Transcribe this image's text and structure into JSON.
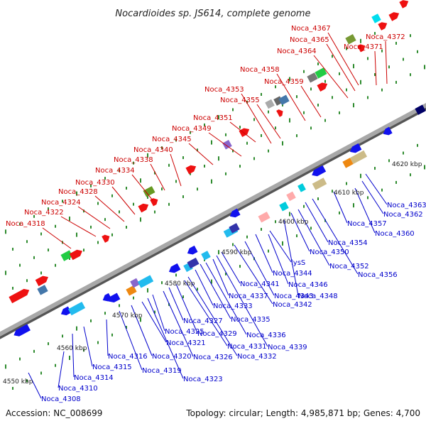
{
  "title": "Nocardioides sp. JS614, complete genome",
  "accession_label": "Accession: NC_008699",
  "topology_label": "Topology: circular; Length: 4,985,871 bp; Genes: 4,700",
  "colors": {
    "forward_label": "#cc0000",
    "reverse_label": "#0000cc",
    "backbone": "#999999",
    "tick": "#2e8b2e"
  },
  "kbp_labels": [
    "4550 kbp",
    "4560 kbp",
    "4570 kbp",
    "4580 kbp",
    "4590 kbp",
    "4600 kbp",
    "4610 kbp",
    "4620 kbp"
  ],
  "top_labels": [
    "Noca_4318",
    "Noca_4322",
    "Noca_4324",
    "Noca_4328",
    "Noca_4330",
    "Noca_4334",
    "Noca_4338",
    "Noca_4340",
    "Noca_4345",
    "Noca_4349",
    "Noca_4351",
    "Noca_4353",
    "Noca_4355",
    "Noca_4358",
    "Noca_4359",
    "Noca_4364",
    "Noca_4365",
    "Noca_4367",
    "Noca_4371",
    "Noca_4372"
  ],
  "bottom_labels": [
    "Noca_4308",
    "Noca_4310",
    "Noca_4314",
    "Noca_4315",
    "Noca_4316",
    "Noca_4319",
    "Noca_4320",
    "Noca_4321",
    "Noca_4323",
    "Noca_4325",
    "Noca_4326",
    "Noca_4327",
    "Noca_4329",
    "Noca_4331",
    "Noca_4332",
    "Noca_4333",
    "Noca_4335",
    "Noca_4336",
    "Noca_4337",
    "Noca_4339",
    "Noca_4341",
    "Noca_4342",
    "Noca_4343",
    "Noca_4344",
    "lysS",
    "Noca_4346",
    "Noca_4348",
    "Noca_4350",
    "Noca_4352",
    "Noca_4354",
    "Noca_4356",
    "Noca_4357",
    "Noca_4360",
    "Noca_4362",
    "Noca_4363"
  ]
}
